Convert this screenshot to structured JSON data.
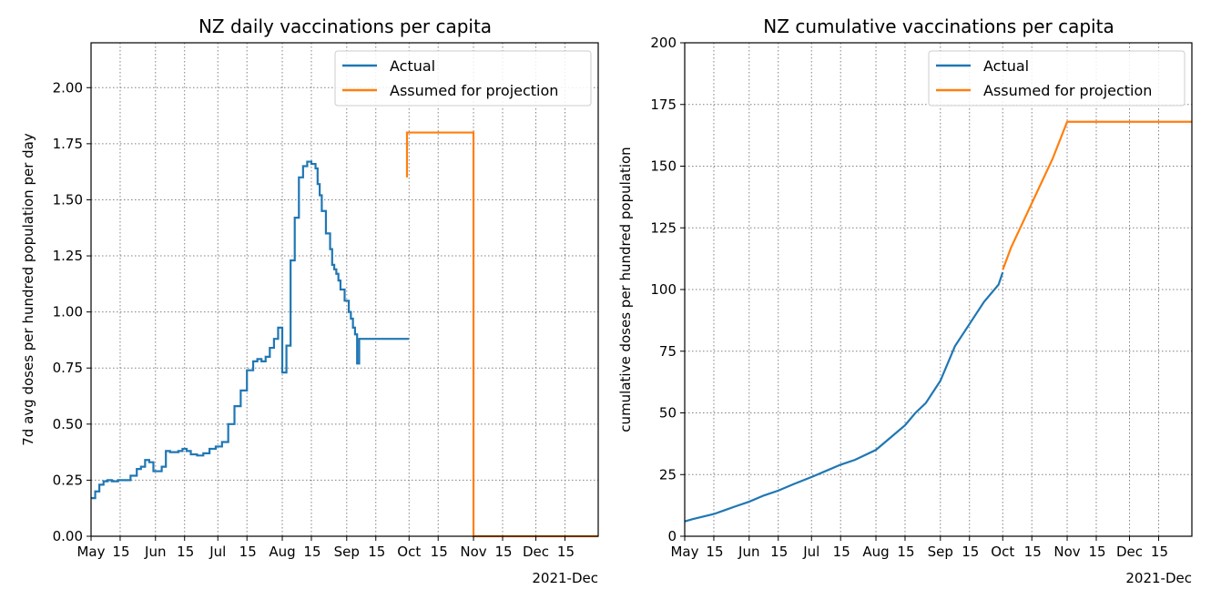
{
  "colors": {
    "actual": "#1f77b4",
    "projection": "#ff7f0e",
    "grid": "#808080"
  },
  "chart_data": [
    {
      "type": "line",
      "title": "NZ daily vaccinations per capita",
      "xlabel": "",
      "ylabel": "7d avg doses per hundred population per day",
      "x_axis": "date",
      "xlim": [
        "2021-05-01",
        "2021-12-31"
      ],
      "ylim": [
        0,
        2.2
      ],
      "yticks": [
        "0.00",
        "0.25",
        "0.50",
        "0.75",
        "1.00",
        "1.25",
        "1.50",
        "1.75",
        "2.00"
      ],
      "xticks": [
        {
          "date": "2021-05-01",
          "label": "May"
        },
        {
          "date": "2021-05-15",
          "label": "15"
        },
        {
          "date": "2021-06-01",
          "label": "Jun"
        },
        {
          "date": "2021-06-15",
          "label": "15"
        },
        {
          "date": "2021-07-01",
          "label": "Jul"
        },
        {
          "date": "2021-07-15",
          "label": "15"
        },
        {
          "date": "2021-08-01",
          "label": "Aug"
        },
        {
          "date": "2021-08-15",
          "label": "15"
        },
        {
          "date": "2021-09-01",
          "label": "Sep"
        },
        {
          "date": "2021-09-15",
          "label": "15"
        },
        {
          "date": "2021-10-01",
          "label": "Oct"
        },
        {
          "date": "2021-10-15",
          "label": "15"
        },
        {
          "date": "2021-11-01",
          "label": "Nov"
        },
        {
          "date": "2021-11-15",
          "label": "15"
        },
        {
          "date": "2021-12-01",
          "label": "Dec"
        },
        {
          "date": "2021-12-15",
          "label": "15"
        }
      ],
      "x_offset_label": "2021-Dec",
      "grid": true,
      "legend_position": "top-right",
      "series": [
        {
          "name": "Actual",
          "color_key": "actual",
          "step": true,
          "x": [
            "2021-05-01",
            "2021-05-03",
            "2021-05-05",
            "2021-05-07",
            "2021-05-09",
            "2021-05-11",
            "2021-05-14",
            "2021-05-17",
            "2021-05-20",
            "2021-05-23",
            "2021-05-25",
            "2021-05-27",
            "2021-05-29",
            "2021-05-31",
            "2021-06-02",
            "2021-06-04",
            "2021-06-06",
            "2021-06-08",
            "2021-06-10",
            "2021-06-12",
            "2021-06-14",
            "2021-06-16",
            "2021-06-18",
            "2021-06-21",
            "2021-06-24",
            "2021-06-27",
            "2021-06-30",
            "2021-07-03",
            "2021-07-06",
            "2021-07-09",
            "2021-07-12",
            "2021-07-15",
            "2021-07-18",
            "2021-07-20",
            "2021-07-22",
            "2021-07-24",
            "2021-07-26",
            "2021-07-28",
            "2021-07-30",
            "2021-08-01",
            "2021-08-03",
            "2021-08-05",
            "2021-08-07",
            "2021-08-09",
            "2021-08-11",
            "2021-08-13",
            "2021-08-15",
            "2021-08-17",
            "2021-08-18",
            "2021-08-19",
            "2021-08-20",
            "2021-08-22",
            "2021-08-24",
            "2021-08-25",
            "2021-08-26",
            "2021-08-27",
            "2021-08-28",
            "2021-08-29",
            "2021-08-31",
            "2021-09-02",
            "2021-09-03",
            "2021-09-04",
            "2021-09-05",
            "2021-09-06",
            "2021-09-07",
            "2021-09-08",
            "2021-09-09",
            "2021-09-10",
            "2021-09-12",
            "2021-09-14",
            "2021-09-16",
            "2021-09-18",
            "2021-09-20",
            "2021-09-22",
            "2021-09-24",
            "2021-09-26",
            "2021-09-28",
            "2021-09-29",
            "2021-09-30",
            "2021-10-01"
          ],
          "y": [
            0.17,
            0.2,
            0.23,
            0.245,
            0.25,
            0.245,
            0.25,
            0.25,
            0.27,
            0.3,
            0.31,
            0.34,
            0.33,
            0.29,
            0.29,
            0.31,
            0.38,
            0.375,
            0.375,
            0.38,
            0.39,
            0.38,
            0.365,
            0.36,
            0.37,
            0.39,
            0.4,
            0.42,
            0.5,
            0.58,
            0.65,
            0.74,
            0.78,
            0.79,
            0.78,
            0.8,
            0.84,
            0.88,
            0.93,
            0.73,
            0.85,
            1.23,
            1.42,
            1.6,
            1.65,
            1.67,
            1.66,
            1.64,
            1.57,
            1.52,
            1.45,
            1.35,
            1.28,
            1.21,
            1.19,
            1.17,
            1.14,
            1.1,
            1.05,
            1.0,
            0.97,
            0.93,
            0.9,
            0.77,
            0.88,
            0.88,
            0.88,
            0.88,
            0.88,
            0.88,
            0.88,
            0.88,
            0.88,
            0.88,
            0.88,
            0.88,
            0.88,
            0.88,
            0.88,
            0.88
          ]
        },
        {
          "name": "Assumed for projection",
          "color_key": "projection",
          "step": true,
          "x": [
            "2021-09-30",
            "2021-09-30",
            "2021-11-01",
            "2021-11-01",
            "2021-12-31"
          ],
          "y": [
            1.6,
            1.8,
            1.8,
            0.0,
            0.0
          ]
        }
      ]
    },
    {
      "type": "line",
      "title": "NZ cumulative vaccinations per capita",
      "xlabel": "",
      "ylabel": "cumulative doses per hundred population",
      "x_axis": "date",
      "xlim": [
        "2021-05-01",
        "2021-12-31"
      ],
      "ylim": [
        0,
        200
      ],
      "yticks": [
        "0",
        "25",
        "50",
        "75",
        "100",
        "125",
        "150",
        "175",
        "200"
      ],
      "xticks": [
        {
          "date": "2021-05-01",
          "label": "May"
        },
        {
          "date": "2021-05-15",
          "label": "15"
        },
        {
          "date": "2021-06-01",
          "label": "Jun"
        },
        {
          "date": "2021-06-15",
          "label": "15"
        },
        {
          "date": "2021-07-01",
          "label": "Jul"
        },
        {
          "date": "2021-07-15",
          "label": "15"
        },
        {
          "date": "2021-08-01",
          "label": "Aug"
        },
        {
          "date": "2021-08-15",
          "label": "15"
        },
        {
          "date": "2021-09-01",
          "label": "Sep"
        },
        {
          "date": "2021-09-15",
          "label": "15"
        },
        {
          "date": "2021-10-01",
          "label": "Oct"
        },
        {
          "date": "2021-10-15",
          "label": "15"
        },
        {
          "date": "2021-11-01",
          "label": "Nov"
        },
        {
          "date": "2021-11-15",
          "label": "15"
        },
        {
          "date": "2021-12-01",
          "label": "Dec"
        },
        {
          "date": "2021-12-15",
          "label": "15"
        }
      ],
      "x_offset_label": "2021-Dec",
      "grid": true,
      "legend_position": "top-right",
      "series": [
        {
          "name": "Actual",
          "color_key": "actual",
          "step": false,
          "x": [
            "2021-05-01",
            "2021-05-05",
            "2021-05-10",
            "2021-05-15",
            "2021-05-20",
            "2021-05-25",
            "2021-06-01",
            "2021-06-08",
            "2021-06-15",
            "2021-06-22",
            "2021-07-01",
            "2021-07-08",
            "2021-07-15",
            "2021-07-22",
            "2021-08-01",
            "2021-08-08",
            "2021-08-15",
            "2021-08-20",
            "2021-08-25",
            "2021-09-01",
            "2021-09-08",
            "2021-09-15",
            "2021-09-22",
            "2021-09-29",
            "2021-10-01"
          ],
          "y": [
            6,
            7,
            8,
            9,
            10.5,
            12,
            14,
            16.5,
            18.5,
            21,
            24,
            26.5,
            29,
            31,
            35,
            40,
            45,
            50,
            54,
            63,
            77,
            86,
            95,
            102,
            107
          ]
        },
        {
          "name": "Assumed for projection",
          "color_key": "projection",
          "step": false,
          "x": [
            "2021-10-01",
            "2021-10-05",
            "2021-10-10",
            "2021-10-15",
            "2021-10-20",
            "2021-10-25",
            "2021-11-01",
            "2021-11-15",
            "2021-12-01",
            "2021-12-31"
          ],
          "y": [
            108,
            117,
            126,
            135,
            144,
            153,
            168,
            168,
            168,
            168
          ]
        }
      ]
    }
  ]
}
